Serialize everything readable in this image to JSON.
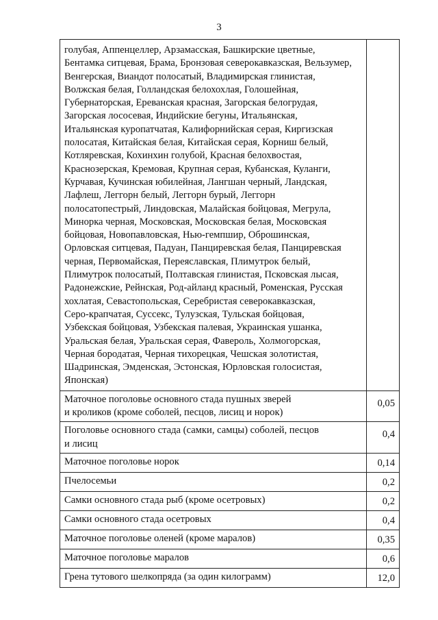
{
  "page_number": "3",
  "breeds_lines": [
    "голубая, Аппенцеллер, Арзамасская, Башкирские цветные,",
    "Бентамка ситцевая, Брама, Бронзовая северокавказская, Вельзумер,",
    "Венгерская, Виандот полосатый, Владимирская глинистая,",
    "Волжская белая, Голландская белохохлая, Голошейная,",
    "Губернаторская, Ереванская красная, Загорская белогрудая,",
    "Загорская лососевая, Индийские бегуны, Итальянская,",
    "Итальянская куропатчатая, Калифорнийская серая, Киргизская",
    "полосатая, Китайская белая, Китайская серая, Корниш белый,",
    "Котляревская, Кохинхин голубой, Красная белохвостая,",
    "Краснозерская, Кремовая, Крупная серая, Кубанская, Куланги,",
    "Курчавая, Кучинская юбилейная, Лангшан черный, Ландская,",
    "Лафлеш, Леггорн белый, Леггорн бурый, Леггорн",
    "полосатопестрый, Линдовская, Малайская бойцовая, Мегрула,",
    "Минорка черная, Московская, Московская белая, Московская",
    "бойцовая, Новопавловская, Нью-гемпшир, Оброшинская,",
    "Орловская ситцевая, Падуан, Панциревская белая, Панциревская",
    "черная, Первомайская, Переяславская, Плимутрок белый,",
    "Плимутрок полосатый, Полтавская глинистая, Псковская лысая,",
    "Радонежские, Рейнская, Род-айланд красный, Роменская, Русская",
    "хохлатая, Севастопольская, Серебристая северокавказская,",
    "Серо-крапчатая, Суссекс, Тулузская, Тульская бойцовая,",
    "Узбекская бойцовая, Узбекская палевая, Украинская ушанка,",
    "Уральская белая, Уральская серая, Фавероль, Холмогорская,",
    "Черная бородатая, Черная тихорецкая, Чешская золотистая,",
    "Шадринская, Эмденская, Эстонская, Юрловская голосистая,",
    "Японская)"
  ],
  "rows": [
    {
      "name_lines": [
        "Маточное поголовье основного стада пушных зверей",
        "и кроликов (кроме соболей, песцов, лисиц и норок)"
      ],
      "value": "0,05"
    },
    {
      "name_lines": [
        "Поголовье основного стада (самки, самцы) соболей, песцов",
        "и лисиц"
      ],
      "value": "0,4"
    },
    {
      "name_lines": [
        "Маточное поголовье норок"
      ],
      "value": "0,14"
    },
    {
      "name_lines": [
        "Пчелосемьи"
      ],
      "value": "0,2"
    },
    {
      "name_lines": [
        "Самки основного стада рыб (кроме осетровых)"
      ],
      "value": "0,2"
    },
    {
      "name_lines": [
        "Самки основного стада осетровых"
      ],
      "value": "0,4"
    },
    {
      "name_lines": [
        "Маточное поголовье оленей (кроме маралов)"
      ],
      "value": "0,35"
    },
    {
      "name_lines": [
        "Маточное поголовье маралов"
      ],
      "value": "0,6"
    },
    {
      "name_lines": [
        "Грена тутового шелкопряда (за один килограмм)"
      ],
      "value": "12,0"
    }
  ]
}
